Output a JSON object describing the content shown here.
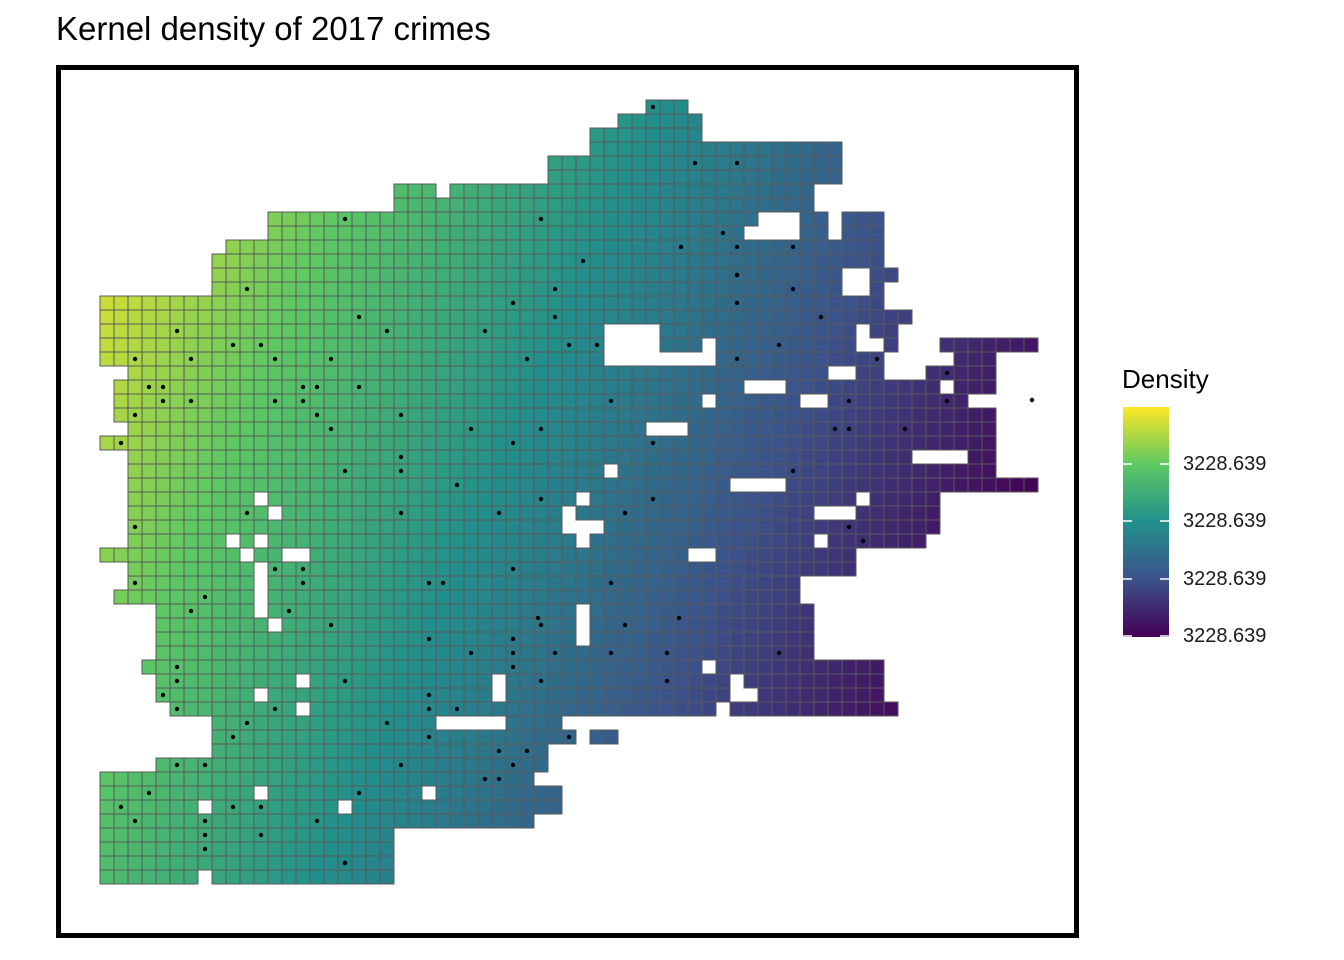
{
  "title": "Kernel density of 2017 crimes",
  "legend": {
    "title": "Density",
    "tick_labels": [
      "3228.639",
      "3228.639",
      "3228.639",
      "3228.639"
    ]
  },
  "chart_data": {
    "type": "heatmap",
    "title": "Kernel density of 2017 crimes",
    "legend_title": "Density",
    "legend_position": "right",
    "colormap": "viridis",
    "colormap_stops": [
      "#440154",
      "#3b528b",
      "#21908c",
      "#5dc863",
      "#fde725"
    ],
    "grid": false,
    "grid_cell_outline_color": "#595959",
    "point_color": "#000000"
  }
}
